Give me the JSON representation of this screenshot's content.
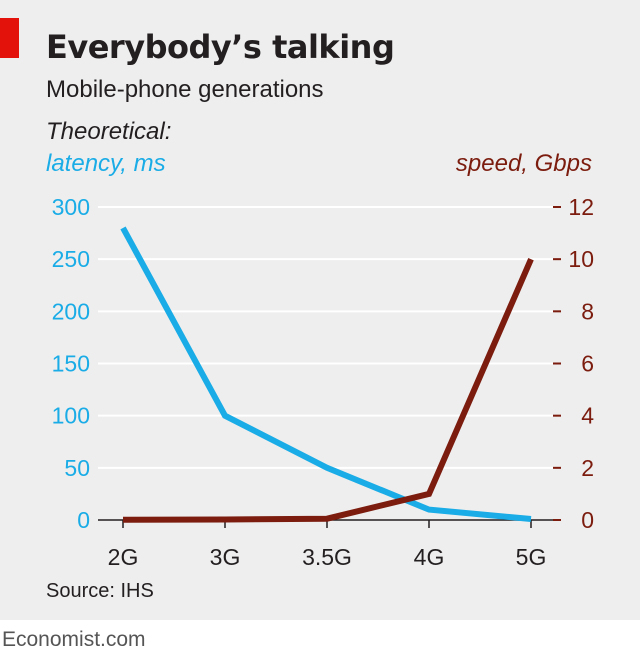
{
  "title": "Everybody’s talking",
  "subtitle": "Mobile-phone generations",
  "source": "Source: IHS",
  "credit": "Economist.com",
  "colors": {
    "latency": "#1aace6",
    "speed": "#7b1c0e",
    "accent": "#e3120b",
    "background": "#eeeeee"
  },
  "chart_data": {
    "type": "line",
    "axis_caption": "Theoretical:",
    "categories": [
      "2G",
      "3G",
      "3.5G",
      "4G",
      "5G"
    ],
    "left_axis": {
      "label": "latency, ms",
      "ylim": [
        0,
        300
      ],
      "ticks": [
        0,
        50,
        100,
        150,
        200,
        250,
        300
      ]
    },
    "right_axis": {
      "label": "speed, Gbps",
      "ylim": [
        0,
        12
      ],
      "ticks": [
        0,
        2,
        4,
        6,
        8,
        10,
        12
      ]
    },
    "grid": true,
    "series": [
      {
        "name": "latency, ms",
        "axis": "left",
        "values": [
          280,
          100,
          50,
          10,
          1
        ]
      },
      {
        "name": "speed, Gbps",
        "axis": "right",
        "values": [
          0.01,
          0.02,
          0.05,
          1,
          10
        ]
      }
    ]
  }
}
